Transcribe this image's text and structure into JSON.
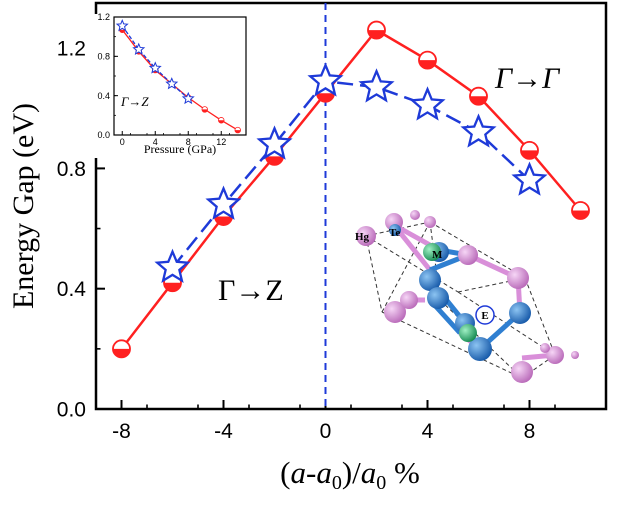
{
  "chart_data": [
    {
      "type": "line",
      "xlabel": "(a-a0)/a0 %",
      "ylabel": "Energy Gap (eV)",
      "xlim": [
        -9,
        11
      ],
      "ylim": [
        0,
        1.35
      ],
      "xticks": [
        "-8",
        "-4",
        "0",
        "4",
        "8"
      ],
      "yticks": [
        "0.0",
        "0.4",
        "0.8",
        "1.2"
      ],
      "annotations": {
        "left": "Γ→Z",
        "right": "Γ→Γ"
      },
      "vline_x": 0,
      "series": [
        {
          "color": "#ff2020",
          "marker": "half-filled-circle",
          "x": [
            -8,
            -6,
            -4,
            -2,
            0,
            2,
            4,
            6,
            8,
            10
          ],
          "y": [
            0.2,
            0.42,
            0.64,
            0.84,
            1.05,
            1.26,
            1.16,
            1.04,
            0.86,
            0.66
          ]
        },
        {
          "color": "#1e3ad8",
          "marker": "star",
          "x": [
            -6,
            -4,
            -2,
            0,
            2,
            4,
            6,
            8
          ],
          "y": [
            0.47,
            0.68,
            0.88,
            1.09,
            1.07,
            1.01,
            0.92,
            0.76
          ]
        }
      ]
    },
    {
      "type": "line",
      "xlabel": "Pressure (GPa)",
      "ylabel": "",
      "xlim": [
        -1,
        15
      ],
      "ylim": [
        0,
        1.2
      ],
      "xticks": [
        "0",
        "4",
        "8",
        "12"
      ],
      "yticks": [
        "0.0",
        "0.4",
        "0.8",
        "1.2"
      ],
      "annotation": "Γ→Z",
      "series": [
        {
          "color": "#ff2020",
          "marker": "half-filled-circle",
          "x": [
            0,
            2,
            4,
            6,
            8,
            10,
            12,
            14
          ],
          "y": [
            1.07,
            0.85,
            0.66,
            0.52,
            0.38,
            0.26,
            0.15,
            0.05
          ]
        },
        {
          "color": "#1e3ad8",
          "marker": "star",
          "x": [
            0,
            2,
            4,
            6,
            8
          ],
          "y": [
            1.11,
            0.87,
            0.68,
            0.52,
            0.37
          ]
        }
      ]
    }
  ],
  "structure": {
    "atom_labels": {
      "hg": "Hg",
      "te": "Te",
      "m": "M",
      "e": "E"
    },
    "colors": {
      "hg": "#d98fd9",
      "te": "#2f7fd1",
      "m": "#2fbf7a"
    }
  }
}
